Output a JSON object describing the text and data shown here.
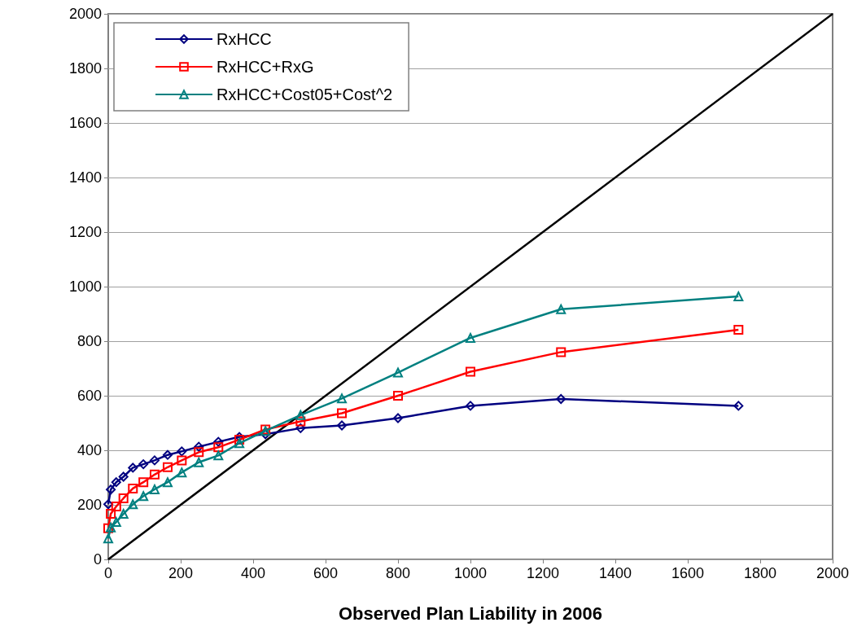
{
  "chart_data": {
    "type": "line",
    "xlabel": "Observed Plan Liability in 2006",
    "xlim": [
      0,
      2000
    ],
    "xticks": [
      0,
      200,
      400,
      600,
      800,
      1000,
      1200,
      1400,
      1600,
      1800,
      2000
    ],
    "ylim": [
      0,
      2000
    ],
    "yticks": [
      0,
      200,
      400,
      600,
      800,
      1000,
      1200,
      1400,
      1600,
      1800,
      2000
    ],
    "grid": "y",
    "legend": "top left",
    "line_style": "solid",
    "series": [
      {
        "name": "RxHCC",
        "color": "#000080",
        "marker": "diamond",
        "x": [
          0,
          7,
          22,
          42,
          68,
          97,
          128,
          164,
          203,
          250,
          304,
          362,
          434,
          531,
          645,
          800,
          1000,
          1250,
          1740
        ],
        "values": [
          202,
          256,
          283,
          303,
          336,
          349,
          363,
          383,
          396,
          413,
          431,
          449,
          459,
          481,
          491,
          518,
          563,
          588,
          563
        ]
      },
      {
        "name": "RxHCC+RxG",
        "color": "#ff0000",
        "marker": "square",
        "x": [
          0,
          7,
          22,
          42,
          68,
          97,
          128,
          164,
          203,
          250,
          304,
          362,
          434,
          531,
          645,
          800,
          1000,
          1250,
          1740
        ],
        "values": [
          114,
          167,
          194,
          224,
          260,
          283,
          311,
          338,
          363,
          393,
          411,
          439,
          476,
          506,
          536,
          600,
          688,
          760,
          842
        ]
      },
      {
        "name": "RxHCC+Cost05+Cost^2",
        "color": "#008080",
        "marker": "triangle",
        "x": [
          0,
          7,
          22,
          42,
          68,
          97,
          128,
          164,
          203,
          250,
          304,
          362,
          434,
          531,
          645,
          800,
          1000,
          1250,
          1740
        ],
        "values": [
          77,
          117,
          137,
          167,
          202,
          232,
          257,
          283,
          319,
          356,
          381,
          426,
          471,
          529,
          590,
          685,
          812,
          917,
          964
        ]
      },
      {
        "color": "#000000",
        "marker": "none",
        "x": [
          0,
          2000
        ],
        "values": [
          0,
          2000
        ]
      }
    ]
  }
}
